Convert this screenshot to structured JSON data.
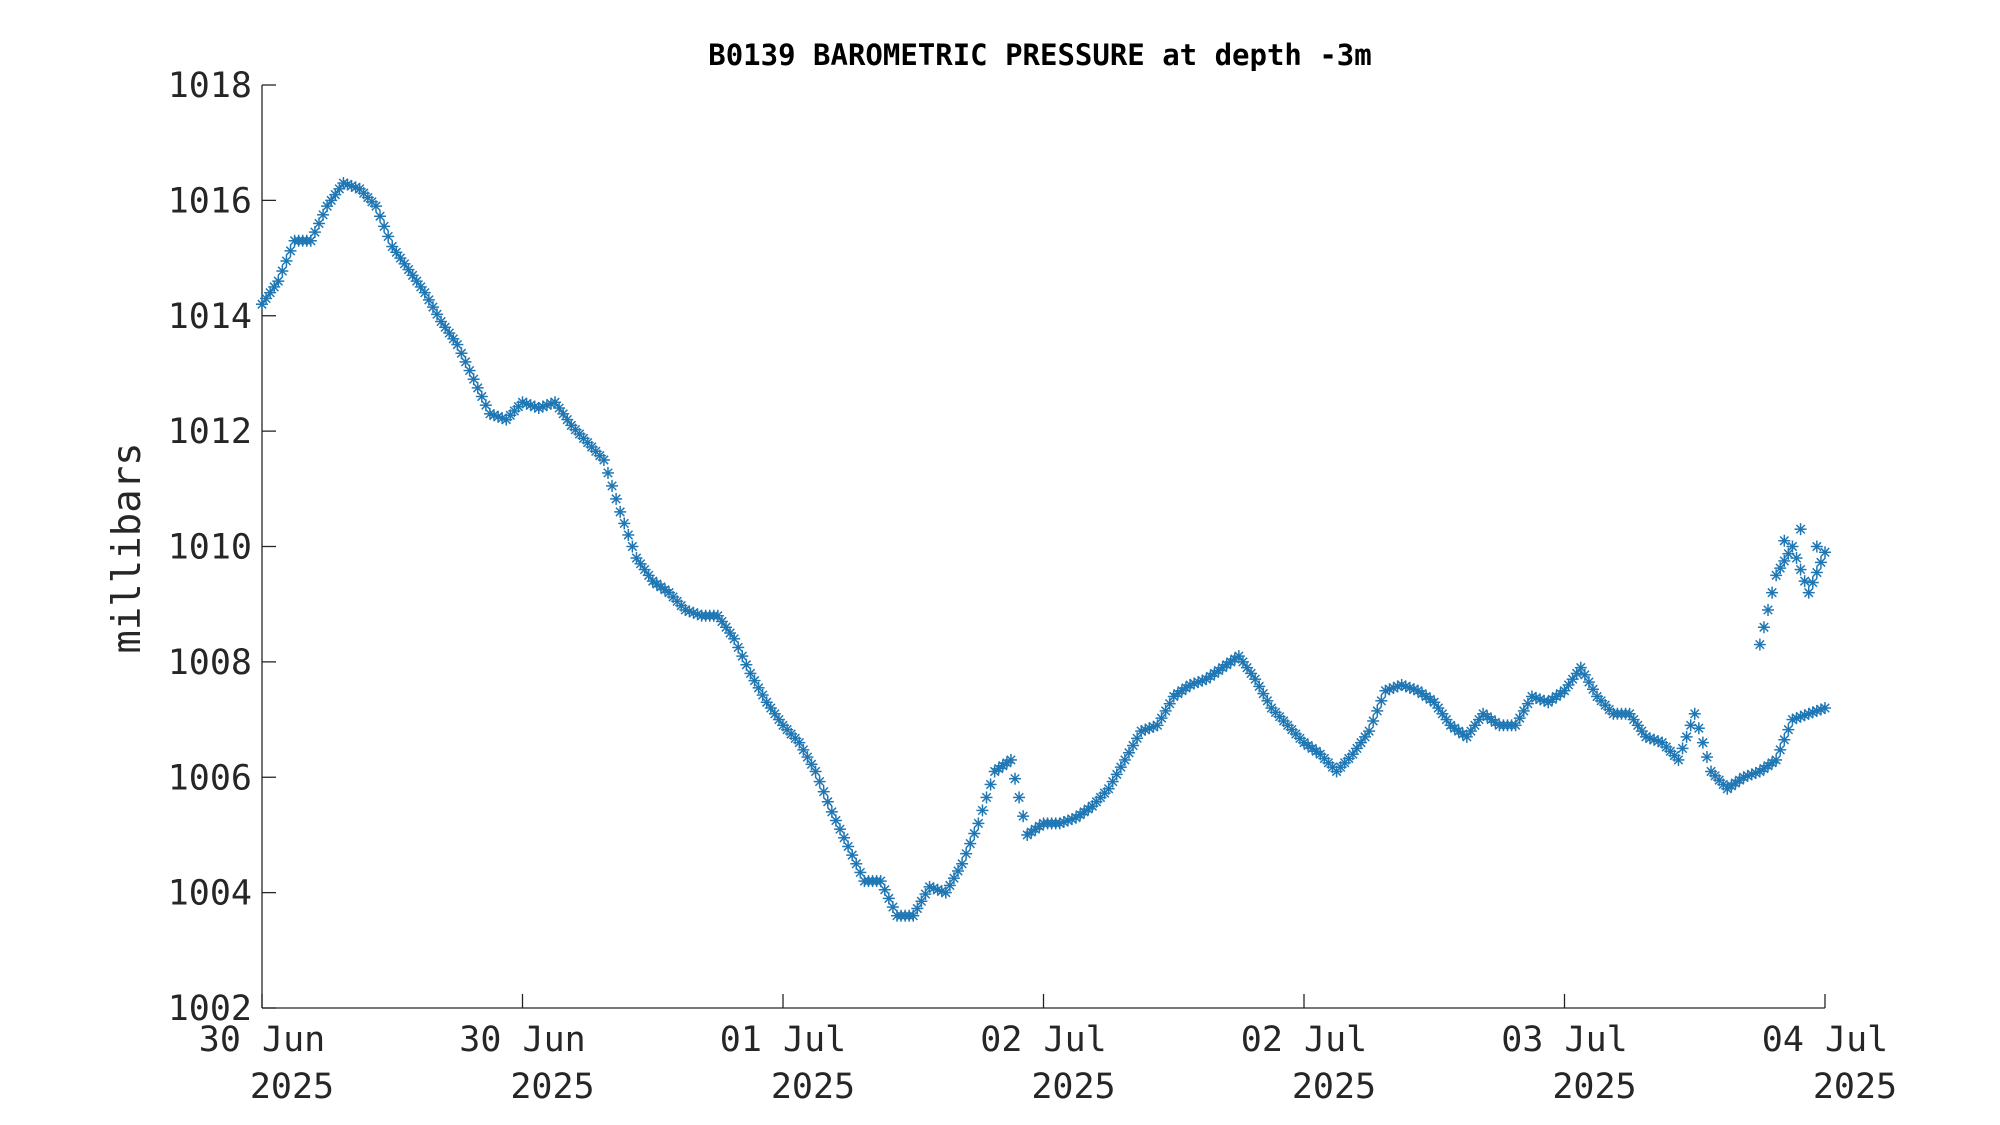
{
  "chart_data": {
    "type": "scatter",
    "title": "B0139 BAROMETRIC PRESSURE at depth -3m",
    "xlabel": "",
    "ylabel": "millibars",
    "ylim": [
      1002,
      1018
    ],
    "yticks": [
      1002,
      1004,
      1006,
      1008,
      1010,
      1012,
      1014,
      1016,
      1018
    ],
    "xlim": [
      "2025-06-30 00:00",
      "2025-07-04 00:00"
    ],
    "xticks": [
      {
        "time": "2025-06-30 00:00",
        "label1": "30 Jun",
        "label2": "2025"
      },
      {
        "time": "2025-06-30 16:00",
        "label1": "30 Jun",
        "label2": "2025"
      },
      {
        "time": "2025-07-01 08:00",
        "label1": "01 Jul",
        "label2": "2025"
      },
      {
        "time": "2025-07-02 00:00",
        "label1": "02 Jul",
        "label2": "2025"
      },
      {
        "time": "2025-07-02 16:00",
        "label1": "02 Jul",
        "label2": "2025"
      },
      {
        "time": "2025-07-03 08:00",
        "label1": "03 Jul",
        "label2": "2025"
      },
      {
        "time": "2025-07-04 00:00",
        "label1": "04 Jul",
        "label2": "2025"
      }
    ],
    "marker": "asterisk",
    "grid": false,
    "color": "#1f77b4",
    "series": [
      {
        "x": [
          "2025-06-30 00:00",
          "2025-06-30 01:00",
          "2025-06-30 02:00",
          "2025-06-30 03:00",
          "2025-06-30 04:00",
          "2025-06-30 05:00",
          "2025-06-30 06:00",
          "2025-06-30 07:00",
          "2025-06-30 08:00",
          "2025-06-30 09:00",
          "2025-06-30 10:00",
          "2025-06-30 11:00",
          "2025-06-30 12:00",
          "2025-06-30 13:00",
          "2025-06-30 14:00",
          "2025-06-30 15:00",
          "2025-06-30 16:00",
          "2025-06-30 17:00",
          "2025-06-30 18:00",
          "2025-06-30 19:00",
          "2025-06-30 20:00",
          "2025-06-30 21:00",
          "2025-06-30 22:00",
          "2025-06-30 23:00",
          "2025-07-01 00:00",
          "2025-07-01 01:00",
          "2025-07-01 02:00",
          "2025-07-01 03:00",
          "2025-07-01 04:00",
          "2025-07-01 05:00",
          "2025-07-01 06:00",
          "2025-07-01 07:00",
          "2025-07-01 08:00",
          "2025-07-01 09:00",
          "2025-07-01 10:00",
          "2025-07-01 11:00",
          "2025-07-01 12:00",
          "2025-07-01 13:00",
          "2025-07-01 14:00",
          "2025-07-01 15:00",
          "2025-07-01 16:00",
          "2025-07-01 17:00",
          "2025-07-01 18:00",
          "2025-07-01 19:00",
          "2025-07-01 20:00",
          "2025-07-01 21:00",
          "2025-07-01 22:00",
          "2025-07-01 23:00",
          "2025-07-02 00:00",
          "2025-07-02 01:00",
          "2025-07-02 02:00",
          "2025-07-02 03:00",
          "2025-07-02 04:00",
          "2025-07-02 05:00",
          "2025-07-02 06:00",
          "2025-07-02 07:00",
          "2025-07-02 08:00",
          "2025-07-02 09:00",
          "2025-07-02 10:00",
          "2025-07-02 11:00",
          "2025-07-02 12:00",
          "2025-07-02 13:00",
          "2025-07-02 14:00",
          "2025-07-02 15:00",
          "2025-07-02 16:00",
          "2025-07-02 17:00",
          "2025-07-02 18:00",
          "2025-07-02 19:00",
          "2025-07-02 20:00",
          "2025-07-02 21:00",
          "2025-07-02 22:00",
          "2025-07-02 23:00",
          "2025-07-03 00:00",
          "2025-07-03 01:00",
          "2025-07-03 02:00",
          "2025-07-03 03:00",
          "2025-07-03 04:00",
          "2025-07-03 05:00",
          "2025-07-03 06:00",
          "2025-07-03 07:00",
          "2025-07-03 08:00",
          "2025-07-03 09:00",
          "2025-07-03 10:00",
          "2025-07-03 11:00",
          "2025-07-03 12:00",
          "2025-07-03 13:00",
          "2025-07-03 14:00",
          "2025-07-03 15:00",
          "2025-07-03 16:00",
          "2025-07-03 17:00",
          "2025-07-03 18:00",
          "2025-07-03 19:00",
          "2025-07-03 20:00",
          "2025-07-03 21:00",
          "2025-07-03 22:00",
          "2025-07-03 23:00",
          "2025-07-04 00:00"
        ],
        "y": [
          1014.2,
          1014.6,
          1015.3,
          1015.3,
          1015.9,
          1016.3,
          1016.2,
          1015.9,
          1015.2,
          1014.8,
          1014.4,
          1013.9,
          1013.5,
          1012.9,
          1012.3,
          1012.2,
          1012.5,
          1012.4,
          1012.5,
          1012.1,
          1011.8,
          1011.5,
          1010.6,
          1009.8,
          1009.4,
          1009.2,
          1008.9,
          1008.8,
          1008.8,
          1008.4,
          1007.8,
          1007.3,
          1006.9,
          1006.6,
          1006.1,
          1005.4,
          1004.8,
          1004.2,
          1004.2,
          1003.6,
          1003.6,
          1004.1,
          1004.0,
          1004.5,
          1005.2,
          1006.1,
          1006.3,
          1005.0,
          1005.2,
          1005.2,
          1005.3,
          1005.5,
          1005.8,
          1006.3,
          1006.8,
          1006.9,
          1007.4,
          1007.6,
          1007.7,
          1007.9,
          1008.1,
          1007.7,
          1007.2,
          1006.9,
          1006.6,
          1006.4,
          1006.1,
          1006.4,
          1006.8,
          1007.5,
          1007.6,
          1007.5,
          1007.3,
          1006.9,
          1006.7,
          1007.1,
          1006.9,
          1006.9,
          1007.4,
          1007.3,
          1007.5,
          1007.9,
          1007.4,
          1007.1,
          1007.1,
          1006.7,
          1006.6,
          1006.3,
          1007.1,
          1006.1,
          1005.8,
          1006.0,
          1006.1,
          1006.3,
          1007.0,
          1007.1,
          1007.2
        ]
      },
      {
        "x": [
          "2025-07-03 20:00",
          "2025-07-03 21:00",
          "2025-07-03 22:00",
          "2025-07-03 23:00",
          "2025-07-04 00:00"
        ],
        "y": [
          1008.3,
          1009.5,
          1010.0,
          1009.2,
          1009.9
        ]
      }
    ]
  },
  "chart_data_extra": {
    "tail": [
      {
        "x": "2025-07-03 21:30",
        "y": 1010.1
      },
      {
        "x": "2025-07-03 22:30",
        "y": 1010.3
      },
      {
        "x": "2025-07-03 23:30",
        "y": 1010.0
      }
    ]
  }
}
